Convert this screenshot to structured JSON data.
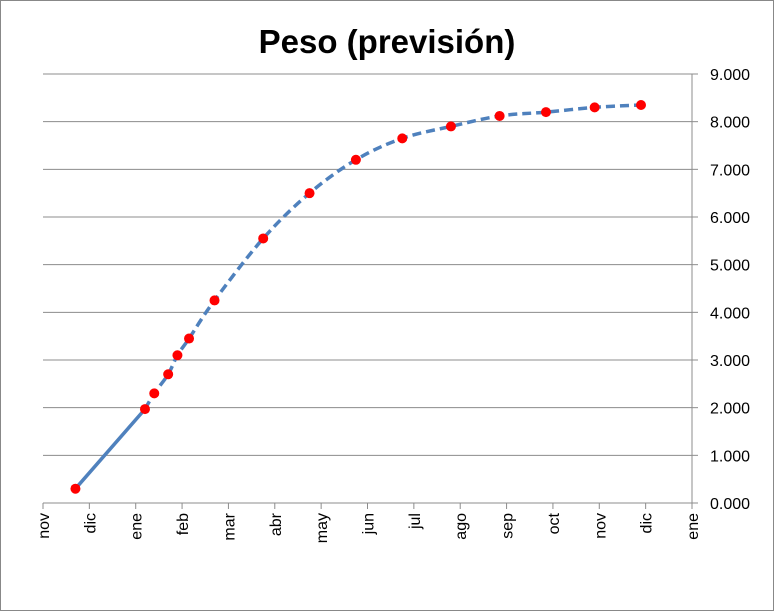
{
  "chart_data": {
    "type": "line",
    "title": "Peso (previsión)",
    "xlabel": "",
    "ylabel": "",
    "x_tick_labels": [
      "nov",
      "dic",
      "ene",
      "feb",
      "mar",
      "abr",
      "may",
      "jun",
      "jul",
      "ago",
      "sep",
      "oct",
      "nov",
      "dic",
      "ene"
    ],
    "y_tick_labels": [
      "0.000",
      "1.000",
      "2.000",
      "3.000",
      "4.000",
      "5.000",
      "6.000",
      "7.000",
      "8.000",
      "9.000"
    ],
    "xlim": [
      0,
      14
    ],
    "ylim": [
      0,
      9
    ],
    "y_axis_side": "right",
    "grid": "horizontal",
    "legend": "none",
    "series": [
      {
        "values": [
          {
            "x": 0.7,
            "y": 0.3
          },
          {
            "x": 2.2,
            "y": 1.97
          },
          {
            "x": 2.4,
            "y": 2.3
          },
          {
            "x": 2.7,
            "y": 2.7
          },
          {
            "x": 2.9,
            "y": 3.1
          },
          {
            "x": 3.15,
            "y": 3.45
          },
          {
            "x": 3.7,
            "y": 4.25
          },
          {
            "x": 4.75,
            "y": 5.55
          },
          {
            "x": 5.75,
            "y": 6.5
          },
          {
            "x": 6.75,
            "y": 7.2
          },
          {
            "x": 7.75,
            "y": 7.65
          },
          {
            "x": 8.8,
            "y": 7.9
          },
          {
            "x": 9.85,
            "y": 8.12
          },
          {
            "x": 10.85,
            "y": 8.2
          },
          {
            "x": 11.9,
            "y": 8.3
          },
          {
            "x": 12.9,
            "y": 8.35
          }
        ],
        "solid_points": 2,
        "line_color": "#4F81BD",
        "marker_color": "#FF0000"
      }
    ]
  }
}
